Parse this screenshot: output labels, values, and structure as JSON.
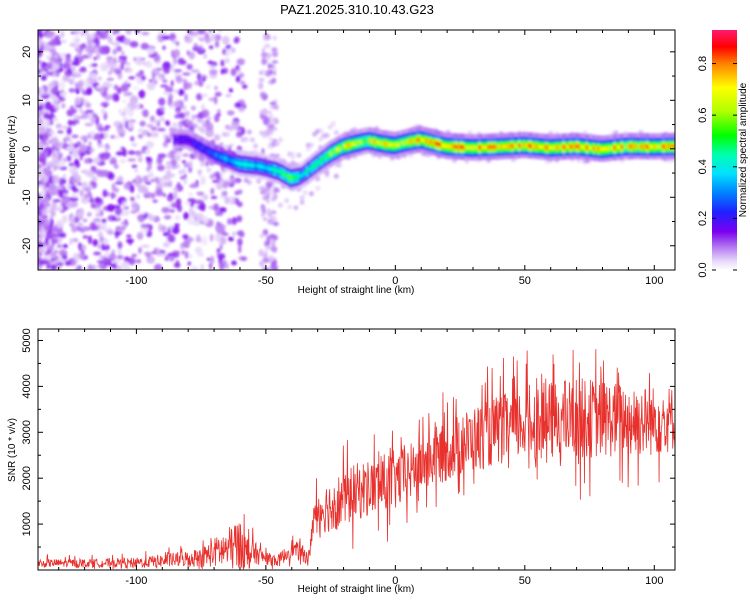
{
  "figure_title": "PAZ1.2025.310.10.43.G23",
  "chart_data": [
    {
      "type": "heatmap",
      "name": "spectrogram",
      "xlabel": "Height of straight line (km)",
      "ylabel": "Frequency (Hz)",
      "xlim": [
        -138,
        108
      ],
      "ylim": [
        -25,
        24.5
      ],
      "xticks": [
        -100,
        -50,
        0,
        50,
        100
      ],
      "xtick_labels": [
        "-100",
        "-50",
        "0",
        "50",
        "100"
      ],
      "yticks": [
        -20,
        -10,
        0,
        10,
        20
      ],
      "ytick_labels": [
        "-20",
        "-10",
        "0",
        "10",
        "20"
      ],
      "colorbar": {
        "label": "Normalized spectral amplitude",
        "range": [
          0,
          0.93
        ],
        "ticks": [
          0,
          0.2,
          0.4,
          0.6,
          0.8
        ],
        "tick_labels": [
          "0.0",
          "0.2",
          "0.4",
          "0.6",
          "0.8"
        ]
      },
      "ridge": {
        "heights": [
          -80,
          -70,
          -60,
          -52,
          -45,
          -40,
          -36,
          -30,
          -25,
          -20,
          -15,
          -10,
          -5,
          0,
          5,
          10,
          20,
          30,
          40,
          50,
          60,
          70,
          80,
          90,
          100,
          108
        ],
        "frequency": [
          2,
          -1,
          -3,
          -3.5,
          -4.5,
          -6,
          -5.5,
          -3,
          -1,
          0.5,
          1.2,
          1.8,
          1.2,
          0.8,
          1.5,
          2,
          0.6,
          0.3,
          0.5,
          0.8,
          0.3,
          0.6,
          0,
          0.6,
          0.5,
          0.6
        ],
        "peak_amplitude": [
          0.2,
          0.3,
          0.45,
          0.4,
          0.5,
          0.55,
          0.45,
          0.55,
          0.6,
          0.7,
          0.75,
          0.7,
          0.8,
          0.75,
          0.7,
          0.8,
          0.85,
          0.85,
          0.8,
          0.85,
          0.85,
          0.85,
          0.85,
          0.8,
          0.85,
          0.8
        ]
      }
    },
    {
      "type": "line",
      "name": "snr",
      "xlabel": "Height of straight line (km)",
      "ylabel": "SNR (10 * v/v)",
      "xlim": [
        -138,
        108
      ],
      "ylim": [
        0,
        5250
      ],
      "xticks": [
        -100,
        -50,
        0,
        50,
        100
      ],
      "xtick_labels": [
        "-100",
        "-50",
        "0",
        "50",
        "100"
      ],
      "yticks": [
        1000,
        2000,
        3000,
        4000,
        5000
      ],
      "ytick_labels": [
        "1000",
        "2000",
        "3000",
        "4000",
        "5000"
      ],
      "color": "#e8302c",
      "envelope": {
        "x": [
          -138,
          -120,
          -100,
          -90,
          -80,
          -75,
          -70,
          -65,
          -60,
          -58,
          -55,
          -50,
          -45,
          -40,
          -35,
          -33,
          -32,
          -30,
          -25,
          -20,
          -15,
          -10,
          -5,
          0,
          5,
          10,
          20,
          30,
          40,
          50,
          60,
          70,
          80,
          90,
          100,
          108
        ],
        "mean": [
          150,
          150,
          160,
          200,
          250,
          280,
          380,
          450,
          550,
          450,
          380,
          250,
          200,
          480,
          320,
          300,
          1100,
          1300,
          1400,
          1550,
          1700,
          1800,
          1850,
          1950,
          2100,
          2300,
          2600,
          2850,
          3050,
          3200,
          3250,
          3300,
          3300,
          3250,
          3250,
          3300
        ],
        "spread": [
          100,
          100,
          120,
          160,
          200,
          250,
          350,
          500,
          650,
          600,
          300,
          150,
          150,
          220,
          200,
          150,
          450,
          550,
          650,
          700,
          700,
          700,
          750,
          750,
          700,
          700,
          750,
          800,
          850,
          900,
          950,
          1000,
          950,
          900,
          850,
          800
        ]
      }
    }
  ]
}
